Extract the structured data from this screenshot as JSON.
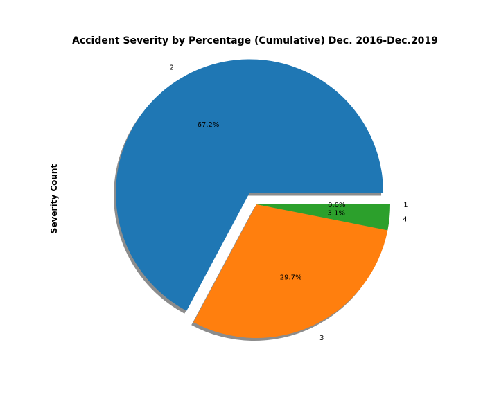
{
  "chart_data": {
    "type": "pie",
    "title": "Accident Severity by Percentage (Cumulative) Dec. 2016-Dec.2019",
    "ylabel": "Severity Count",
    "slices": [
      {
        "label": "2",
        "value": 67.2,
        "pct_label": "67.2%",
        "color": "#1f77b4",
        "exploded": true
      },
      {
        "label": "3",
        "value": 29.7,
        "pct_label": "29.7%",
        "color": "#ff7f0e",
        "exploded": false
      },
      {
        "label": "4",
        "value": 3.1,
        "pct_label": "3.1%",
        "color": "#2ca02c",
        "exploded": false
      },
      {
        "label": "1",
        "value": 0.0,
        "pct_label": "0.0%",
        "color": "#d62728",
        "exploded": false
      }
    ],
    "shadow": true,
    "start_angle": 0,
    "direction": "counterclockwise"
  }
}
